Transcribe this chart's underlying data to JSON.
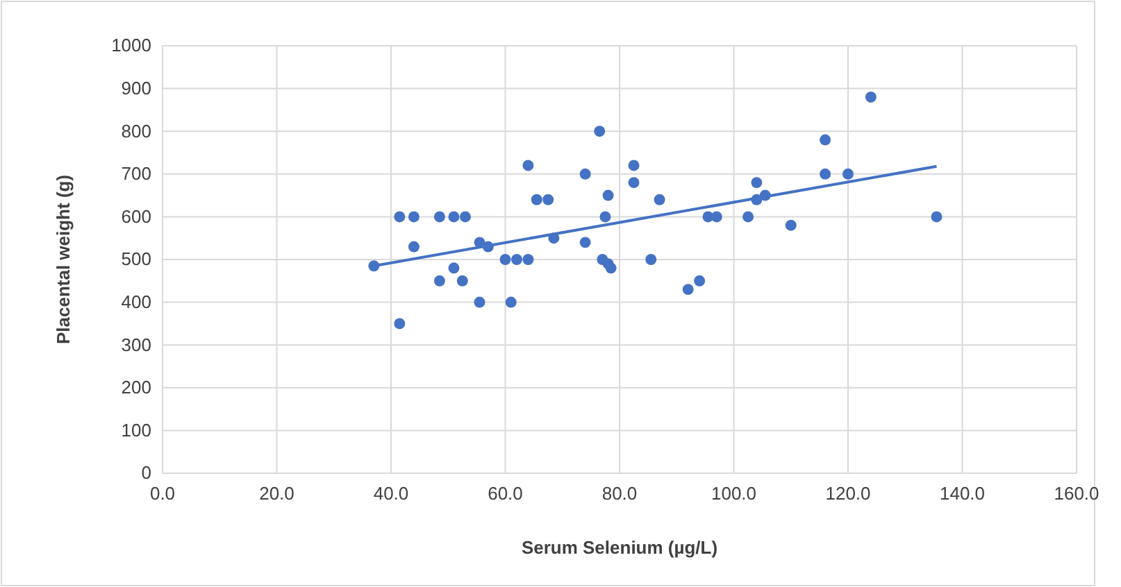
{
  "chart_data": {
    "type": "scatter",
    "xlabel": "Serum Selenium (µg/L)",
    "ylabel": "Placental weight (g)",
    "xlim": [
      0,
      160
    ],
    "xticks": [
      {
        "value": 0,
        "label": "0.0"
      },
      {
        "value": 20,
        "label": "20.0"
      },
      {
        "value": 40,
        "label": "40.0"
      },
      {
        "value": 60,
        "label": "60.0"
      },
      {
        "value": 80,
        "label": "80.0"
      },
      {
        "value": 100,
        "label": "100.0"
      },
      {
        "value": 120,
        "label": "120.0"
      },
      {
        "value": 140,
        "label": "140.0"
      },
      {
        "value": 160,
        "label": "160.0"
      }
    ],
    "ylim": [
      0,
      1000
    ],
    "yticks": [
      0,
      100,
      200,
      300,
      400,
      500,
      600,
      700,
      800,
      900,
      1000
    ],
    "grid": true,
    "marker": "circle",
    "series": [
      {
        "type": "scatter",
        "color": "#4472c4",
        "x": [
          37,
          41.5,
          41.5,
          44,
          44,
          48.5,
          48.5,
          51,
          51,
          52.5,
          53,
          55.5,
          55.5,
          57,
          60,
          61,
          62,
          64,
          64,
          65.5,
          67.5,
          68.5,
          74,
          74,
          76.5,
          77,
          77.5,
          78,
          78,
          78.5,
          82.5,
          82.5,
          85.5,
          87,
          92,
          94,
          95.5,
          97,
          102.5,
          104,
          104,
          105.5,
          110,
          116,
          116,
          120,
          124,
          135.5
        ],
        "values": [
          485,
          350,
          600,
          600,
          530,
          450,
          600,
          600,
          480,
          450,
          600,
          540,
          400,
          530,
          500,
          400,
          500,
          500,
          720,
          640,
          640,
          550,
          700,
          540,
          800,
          500,
          600,
          490,
          650,
          480,
          720,
          680,
          500,
          640,
          430,
          450,
          600,
          600,
          600,
          680,
          640,
          650,
          580,
          700,
          780,
          700,
          880,
          600
        ]
      },
      {
        "type": "line",
        "color": "#4472c4",
        "marker": "none",
        "x": [
          37,
          135.5
        ],
        "values": [
          485,
          718
        ]
      }
    ]
  }
}
